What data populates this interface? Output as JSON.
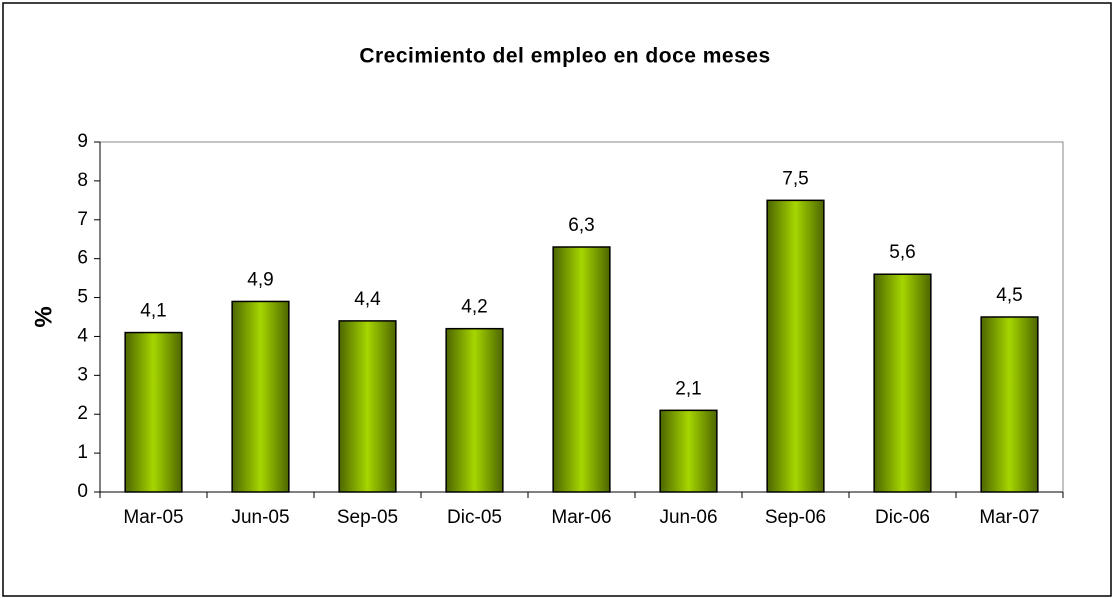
{
  "chart_data": {
    "type": "bar",
    "title": "Crecimiento del empleo en doce meses",
    "y_label": "%",
    "categories": [
      "Mar-05",
      "Jun-05",
      "Sep-05",
      "Dic-05",
      "Mar-06",
      "Jun-06",
      "Sep-06",
      "Dic-06",
      "Mar-07"
    ],
    "values": [
      4.1,
      4.9,
      4.4,
      4.2,
      6.3,
      2.1,
      7.5,
      5.6,
      4.5
    ],
    "value_labels": [
      "4,1",
      "4,9",
      "4,4",
      "4,2",
      "6,3",
      "2,1",
      "7,5",
      "5,6",
      "4,5"
    ],
    "color": "#99cc00",
    "ylim": [
      0,
      9
    ],
    "yticks": [
      0,
      1,
      2,
      3,
      4,
      5,
      6,
      7,
      8,
      9
    ],
    "grid": false
  }
}
